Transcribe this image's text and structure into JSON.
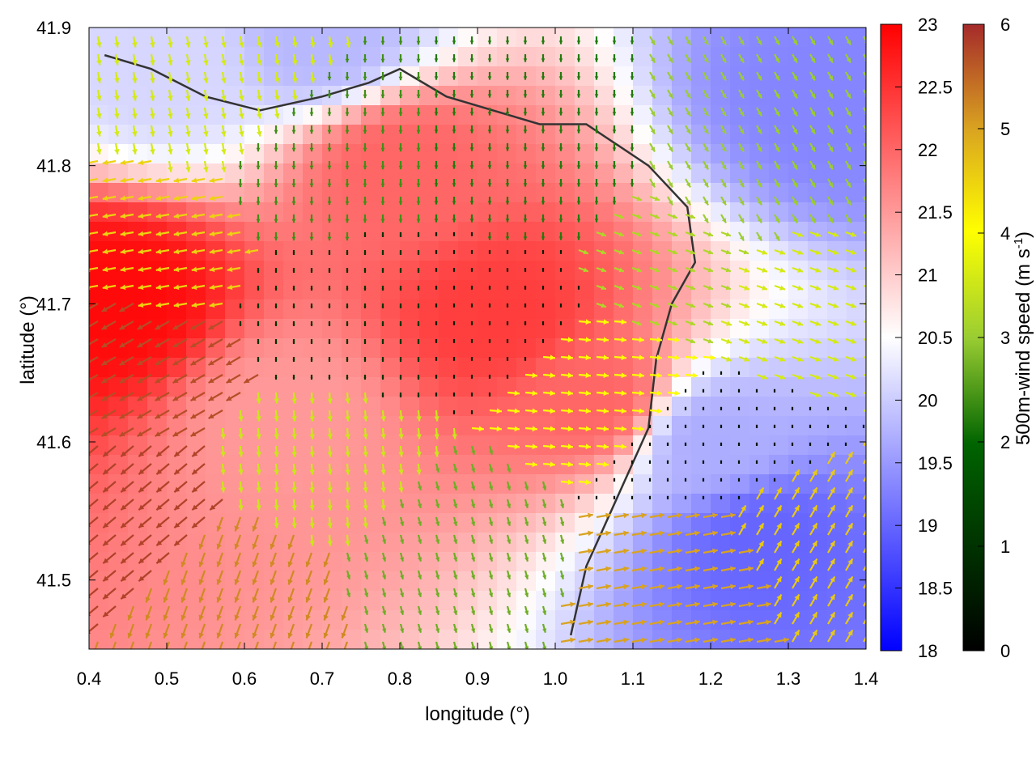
{
  "chart_data": {
    "type": "heatmap",
    "title": "",
    "xlabel": "longitude (°)",
    "ylabel": "latitude (°)",
    "xlim": [
      0.4,
      1.4
    ],
    "ylim": [
      41.45,
      41.9
    ],
    "x_ticks": [
      "0.4",
      "0.5",
      "0.6",
      "0.7",
      "0.8",
      "0.9",
      "1.0",
      "1.1",
      "1.2",
      "1.3",
      "1.4"
    ],
    "y_ticks": [
      "41.5",
      "41.6",
      "41.7",
      "41.8",
      "41.9"
    ],
    "temperature_colorbar": {
      "range": [
        18,
        23
      ],
      "tick_labels": [
        "18",
        "18.5",
        "19",
        "19.5",
        "20",
        "20.5",
        "21",
        "21.5",
        "22",
        "22.5",
        "23"
      ],
      "colors": [
        "#0000ff",
        "#ffffff",
        "#ff0000"
      ]
    },
    "wind_colorbar": {
      "label": "500m-wind speed (m s-1)",
      "label_main": "500m-wind speed (m s",
      "label_sup": "-1",
      "label_close": ")",
      "range": [
        0,
        6
      ],
      "tick_labels": [
        "0",
        "1",
        "2",
        "3",
        "4",
        "5",
        "6"
      ],
      "colors": [
        "#000000",
        "#006400",
        "#9acd32",
        "#ffff00",
        "#daa520",
        "#a52a2a"
      ]
    },
    "grid": false,
    "legend": "right",
    "series": [
      {
        "kind": "temperature-field",
        "hotspots": [
          {
            "lon": 0.93,
            "lat": 41.69,
            "temp": 22.4
          },
          {
            "lon": 0.8,
            "lat": 41.8,
            "temp": 22.0
          },
          {
            "lon": 0.43,
            "lat": 41.7,
            "temp": 22.9
          },
          {
            "lon": 1.05,
            "lat": 41.63,
            "temp": 22.0
          },
          {
            "lon": 0.65,
            "lat": 41.62,
            "temp": 21.5
          },
          {
            "lon": 1.27,
            "lat": 41.53,
            "temp": 19.0
          },
          {
            "lon": 1.36,
            "lat": 41.85,
            "temp": 19.3
          },
          {
            "lon": 0.7,
            "lat": 41.89,
            "temp": 19.8
          },
          {
            "lon": 0.5,
            "lat": 41.87,
            "temp": 20.1
          },
          {
            "lon": 1.2,
            "lat": 41.6,
            "temp": 19.7
          }
        ]
      },
      {
        "kind": "coastline",
        "points": [
          [
            0.42,
            41.88
          ],
          [
            0.48,
            41.87
          ],
          [
            0.55,
            41.85
          ],
          [
            0.62,
            41.84
          ],
          [
            0.7,
            41.85
          ],
          [
            0.76,
            41.86
          ],
          [
            0.8,
            41.87
          ],
          [
            0.86,
            41.85
          ],
          [
            0.92,
            41.84
          ],
          [
            0.98,
            41.83
          ],
          [
            1.04,
            41.83
          ],
          [
            1.12,
            41.8
          ],
          [
            1.17,
            41.77
          ],
          [
            1.18,
            41.73
          ],
          [
            1.15,
            41.7
          ],
          [
            1.13,
            41.66
          ],
          [
            1.12,
            41.61
          ],
          [
            1.08,
            41.56
          ],
          [
            1.04,
            41.51
          ],
          [
            1.02,
            41.46
          ]
        ]
      },
      {
        "kind": "winds",
        "vectors": [
          {
            "lon": 0.45,
            "lat": 41.55,
            "dir": 230,
            "speed": 5.8
          },
          {
            "lon": 0.45,
            "lat": 41.65,
            "dir": 240,
            "speed": 5.7
          },
          {
            "lon": 0.48,
            "lat": 41.75,
            "dir": 260,
            "speed": 4.5
          },
          {
            "lon": 0.55,
            "lat": 41.85,
            "dir": 170,
            "speed": 3.6
          },
          {
            "lon": 0.7,
            "lat": 41.8,
            "dir": 180,
            "speed": 2.4
          },
          {
            "lon": 0.75,
            "lat": 41.7,
            "dir": 180,
            "speed": 1.0
          },
          {
            "lon": 0.92,
            "lat": 41.7,
            "dir": 180,
            "speed": 0.6
          },
          {
            "lon": 0.95,
            "lat": 41.8,
            "dir": 180,
            "speed": 2.2
          },
          {
            "lon": 0.7,
            "lat": 41.58,
            "dir": 175,
            "speed": 3.5
          },
          {
            "lon": 0.85,
            "lat": 41.52,
            "dir": 165,
            "speed": 2.7
          },
          {
            "lon": 1.06,
            "lat": 41.65,
            "dir": 95,
            "speed": 4.0
          },
          {
            "lon": 1.15,
            "lat": 41.72,
            "dir": 110,
            "speed": 3.2
          },
          {
            "lon": 1.25,
            "lat": 41.8,
            "dir": 150,
            "speed": 3.0
          },
          {
            "lon": 1.3,
            "lat": 41.7,
            "dir": 110,
            "speed": 3.6
          },
          {
            "lon": 1.32,
            "lat": 41.52,
            "dir": 30,
            "speed": 4.6
          },
          {
            "lon": 1.18,
            "lat": 41.5,
            "dir": 80,
            "speed": 5.0
          },
          {
            "lon": 0.6,
            "lat": 41.5,
            "dir": 200,
            "speed": 5.2
          },
          {
            "lon": 1.2,
            "lat": 41.6,
            "dir": 0,
            "speed": 0.4
          }
        ]
      }
    ]
  }
}
